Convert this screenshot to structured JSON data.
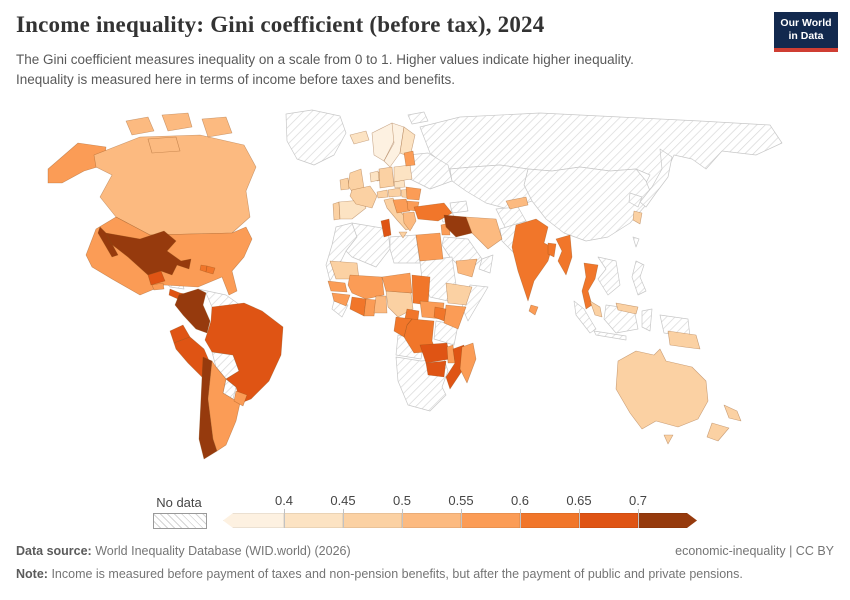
{
  "header": {
    "title": "Income inequality: Gini coefficient (before tax), 2024",
    "subtitle_line1": "The Gini coefficient measures inequality on a scale from 0 to 1. Higher values indicate higher inequality.",
    "subtitle_line2": "Inequality is measured here in terms of income before taxes and benefits.",
    "logo_line1": "Our World",
    "logo_line2": "in Data",
    "logo_bg": "#12294e",
    "logo_accent": "#cf3e33"
  },
  "legend": {
    "no_data_label": "No data",
    "tick_labels": [
      "0.4",
      "0.45",
      "0.5",
      "0.55",
      "0.6",
      "0.65",
      "0.7"
    ],
    "bins": [
      {
        "range": "<0.4",
        "color": "#fdf1e1"
      },
      {
        "range": "0.4–0.45",
        "color": "#fce3c3"
      },
      {
        "range": "0.45–0.5",
        "color": "#fbd1a3"
      },
      {
        "range": "0.5–0.55",
        "color": "#fcba80"
      },
      {
        "range": "0.55–0.6",
        "color": "#fb9c56"
      },
      {
        "range": "0.6–0.65",
        "color": "#f1762a"
      },
      {
        "range": "0.65–0.7",
        "color": "#df5414"
      },
      {
        "range": ">0.7",
        "color": "#963a0d"
      }
    ]
  },
  "footer": {
    "source_label": "Data source:",
    "source_value": "World Inequality Database (WID.world) (2026)",
    "attribution": "economic-inequality | CC BY",
    "note_label": "Note:",
    "note_value": "Income is measured before payment of taxes and non-pension benefits, but after the payment of public and private pensions."
  },
  "chart_data": {
    "type": "choropleth_map",
    "title": "Income inequality: Gini coefficient (before tax)",
    "year": "2024",
    "unit": "Gini coefficient (scale 0–1)",
    "scale": {
      "min": 0.4,
      "max": 0.7,
      "step": 0.05,
      "open_ended": true
    },
    "palette": {
      "no_data": "hatch",
      "lt_0.4": "#fdf1e1",
      "0.4_0.45": "#fce3c3",
      "0.45_0.5": "#fbd1a3",
      "0.5_0.55": "#fcba80",
      "0.55_0.6": "#fb9c56",
      "0.6_0.65": "#f1762a",
      "0.65_0.7": "#df5414",
      "gt_0.7": "#963a0d"
    },
    "countries": {
      "Greenland": "no_data",
      "Russia": "no_data",
      "Svalbard": "no_data",
      "China & Mongolia": "no_data",
      "Kazakhstan & Central Asia": "no_data",
      "Afghanistan": "no_data",
      "Pakistan": "no_data",
      "Caucasus": "no_data",
      "Syria": "no_data",
      "Saudi Arabia": "no_data",
      "Oman": "no_data",
      "Ukraine & Belarus": "no_data",
      "Morocco": "no_data",
      "Algeria": "no_data",
      "Libya": "no_data",
      "Sudan": "no_data",
      "Somalia": "no_data",
      "Tanzania": "no_data",
      "Angola": "no_data",
      "Namibia, Botswana & South Africa": "no_data",
      "Sierra Leone & Liberia": "no_data",
      "Honduras & Nicaragua": "no_data",
      "Cuba": "no_data",
      "Venezuela": "no_data",
      "Guyana & Suriname": "no_data",
      "Bolivia": "no_data",
      "Paraguay": "no_data",
      "Laos, Vietnam & Cambodia": "no_data",
      "Indonesia": "no_data",
      "Philippines": "no_data",
      "Japan": "no_data",
      "North Korea": "no_data",
      "Taiwan": "no_data",
      "United States": "0.55_0.6",
      "Canada": "0.5_0.55",
      "Mexico": "gt_0.7",
      "Guatemala": "0.65_0.7",
      "El Salvador": "0.55_0.6",
      "Costa Rica": "0.65_0.7",
      "Panama": "0.65_0.7",
      "Haiti": "0.6_0.65",
      "Dominican Republic": "0.6_0.65",
      "Colombia": "gt_0.7",
      "Ecuador": "0.65_0.7",
      "Peru": "0.65_0.7",
      "Brazil": "0.65_0.7",
      "Chile": "gt_0.7",
      "Argentina": "0.55_0.6",
      "Uruguay": "0.55_0.6",
      "Iceland": "0.4_0.45",
      "Norway": "lt_0.4",
      "Sweden": "lt_0.4",
      "Finland": "0.4_0.45",
      "Denmark": "0.4_0.45",
      "United Kingdom": "0.45_0.5",
      "Ireland": "0.45_0.5",
      "Portugal": "0.45_0.5",
      "Spain": "0.4_0.45",
      "France": "0.45_0.5",
      "Belgium & Netherlands": "0.4_0.45",
      "Germany": "0.45_0.5",
      "Czechia": "0.4_0.45",
      "Poland": "0.4_0.45",
      "Baltic states": "0.55_0.6",
      "Switzerland": "0.45_0.5",
      "Austria": "0.45_0.5",
      "Hungary": "0.45_0.5",
      "Italy": "0.45_0.5",
      "Western Balkans": "0.55_0.6",
      "Romania": "0.55_0.6",
      "Bulgaria": "0.55_0.6",
      "Greece": "0.5_0.55",
      "Turkey": "0.6_0.65",
      "Tunisia": "0.65_0.7",
      "Egypt": "0.55_0.6",
      "Mauritania": "0.45_0.5",
      "Senegal": "0.55_0.6",
      "Guinea": "0.55_0.6",
      "Mali & Burkina Faso": "0.55_0.6",
      "Côte d'Ivoire": "0.6_0.65",
      "Ghana": "0.55_0.6",
      "Togo & Benin": "0.5_0.55",
      "Nigeria": "0.45_0.5",
      "Niger": "0.55_0.6",
      "Chad": "0.6_0.65",
      "Cameroon": "0.6_0.65",
      "Central African Republic": "0.55_0.6",
      "Ethiopia": "0.45_0.5",
      "Kenya": "0.55_0.6",
      "Uganda": "0.6_0.65",
      "DR Congo": "0.6_0.65",
      "Congo & Gabon": "0.6_0.65",
      "Zambia": "0.65_0.7",
      "Malawi": "0.55_0.6",
      "Mozambique": "0.65_0.7",
      "Zimbabwe": "0.65_0.7",
      "Madagascar": "0.55_0.6",
      "Yemen": "0.5_0.55",
      "Jordan & Israel": "0.55_0.6",
      "Iraq": "gt_0.7",
      "Iran": "0.5_0.55",
      "Kyrgyzstan": "0.5_0.55",
      "India": "0.6_0.65",
      "Bangladesh": "0.6_0.65",
      "Sri Lanka": "0.55_0.6",
      "Myanmar": "0.6_0.65",
      "Thailand": "0.6_0.65",
      "Malaysia": "0.45_0.5",
      "South Korea": "0.45_0.5",
      "Papua New Guinea": "0.45_0.5",
      "Australia": "0.45_0.5",
      "New Zealand": "0.45_0.5"
    }
  }
}
